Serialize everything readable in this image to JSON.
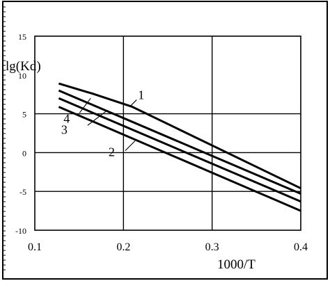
{
  "chart_data": {
    "type": "line",
    "title": "",
    "xlabel": "1000/T",
    "ylabel": "lg(Kd)",
    "xlim": [
      0.1,
      0.4
    ],
    "ylim": [
      -10,
      15
    ],
    "x_ticks": [
      "0.1",
      "0.2",
      "0.3",
      "0.4"
    ],
    "y_ticks": [
      "15",
      "10",
      "5",
      "0",
      "-5",
      "-10"
    ],
    "x_gridlines": [
      0.2,
      0.3
    ],
    "y_gridlines": [
      5,
      0,
      -5
    ],
    "series": [
      {
        "name": "1",
        "x": [
          0.127,
          0.165,
          0.21,
          0.4
        ],
        "y": [
          8.9,
          7.6,
          5.9,
          -4.6
        ]
      },
      {
        "name": "4",
        "x": [
          0.127,
          0.4
        ],
        "y": [
          8.0,
          -5.3
        ]
      },
      {
        "name": "3",
        "x": [
          0.127,
          0.4
        ],
        "y": [
          7.0,
          -6.3
        ]
      },
      {
        "name": "2",
        "x": [
          0.127,
          0.4
        ],
        "y": [
          5.9,
          -7.5
        ]
      }
    ],
    "series_labels": [
      {
        "text": "1",
        "anchor": [
          0.207,
          5.9
        ]
      },
      {
        "text": "4",
        "anchor": [
          0.163,
          7.0
        ]
      },
      {
        "text": "3",
        "anchor": [
          0.18,
          5.3
        ]
      },
      {
        "text": "2",
        "anchor": [
          0.213,
          1.5
        ]
      }
    ],
    "grid": true,
    "legend": "none"
  }
}
